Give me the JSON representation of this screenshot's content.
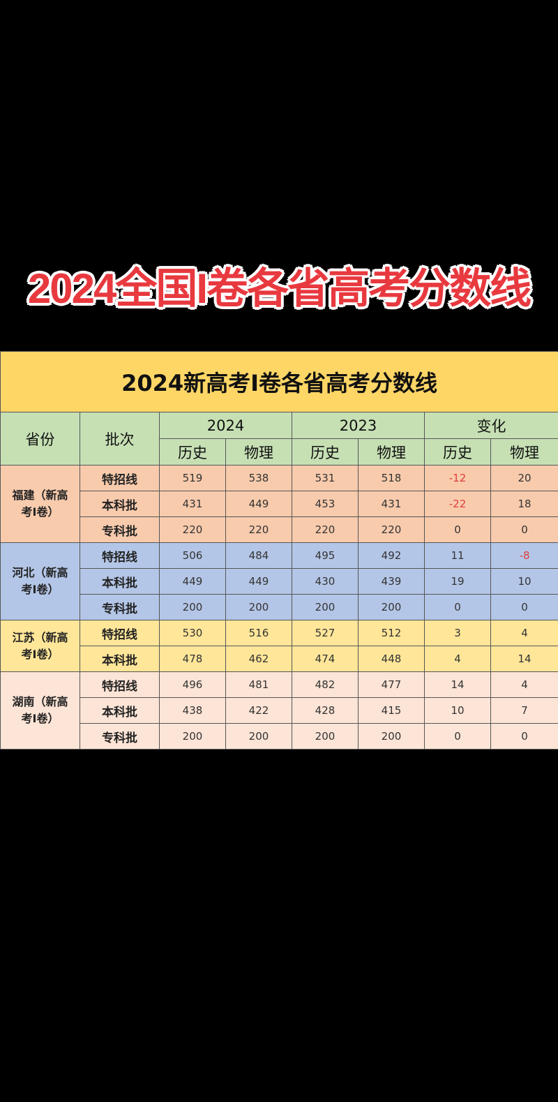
{
  "banner_title": "2024全国I卷各省高考分数线",
  "table": {
    "title": "2024新高考I卷各省高考分数线",
    "headers": {
      "province": "省份",
      "batch": "批次",
      "groups": [
        "2024",
        "2023",
        "变化"
      ],
      "subjects": [
        "历史",
        "物理",
        "历史",
        "物理",
        "历史",
        "物理"
      ]
    },
    "colors": {
      "title": "#fdd666",
      "header": "#c6e0b4",
      "negative": "#e03c3c"
    },
    "provinces": [
      {
        "name": "福建（新高考I卷）",
        "color": "#f8cbad",
        "rows": [
          {
            "batch": "特招线",
            "values": [
              "519",
              "538",
              "531",
              "518",
              "-12",
              "20"
            ]
          },
          {
            "batch": "本科批",
            "values": [
              "431",
              "449",
              "453",
              "431",
              "-22",
              "18"
            ]
          },
          {
            "batch": "专科批",
            "values": [
              "220",
              "220",
              "220",
              "220",
              "0",
              "0"
            ]
          }
        ]
      },
      {
        "name": "河北（新高考I卷）",
        "color": "#b4c6e7",
        "rows": [
          {
            "batch": "特招线",
            "values": [
              "506",
              "484",
              "495",
              "492",
              "11",
              "-8"
            ]
          },
          {
            "batch": "本科批",
            "values": [
              "449",
              "449",
              "430",
              "439",
              "19",
              "10"
            ]
          },
          {
            "batch": "专科批",
            "values": [
              "200",
              "200",
              "200",
              "200",
              "0",
              "0"
            ]
          }
        ]
      },
      {
        "name": "江苏（新高考I卷）",
        "color": "#ffe699",
        "rows": [
          {
            "batch": "特招线",
            "values": [
              "530",
              "516",
              "527",
              "512",
              "3",
              "4"
            ]
          },
          {
            "batch": "本科批",
            "values": [
              "478",
              "462",
              "474",
              "448",
              "4",
              "14"
            ]
          }
        ]
      },
      {
        "name": "湖南（新高考I卷）",
        "color": "#fce4d6",
        "rows": [
          {
            "batch": "特招线",
            "values": [
              "496",
              "481",
              "482",
              "477",
              "14",
              "4"
            ]
          },
          {
            "batch": "本科批",
            "values": [
              "438",
              "422",
              "428",
              "415",
              "10",
              "7"
            ]
          },
          {
            "batch": "专科批",
            "values": [
              "200",
              "200",
              "200",
              "200",
              "0",
              "0"
            ]
          }
        ]
      }
    ]
  }
}
